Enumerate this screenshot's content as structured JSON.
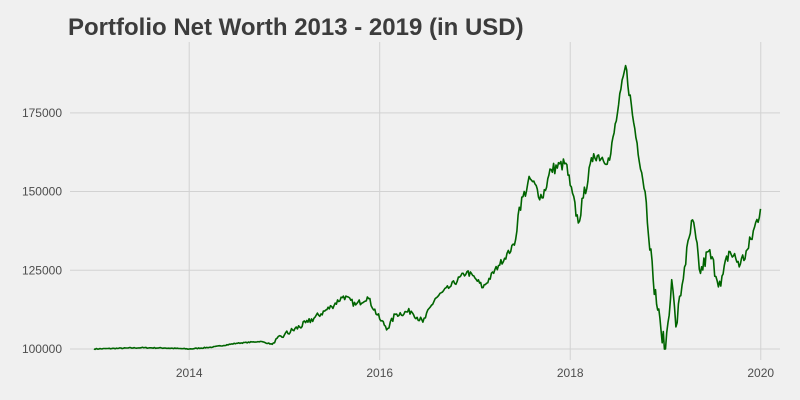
{
  "chart_data": {
    "type": "line",
    "title": "Portfolio Net Worth 2013 - 2019 (in USD)",
    "xlabel": "",
    "ylabel": "",
    "x_axis": {
      "type": "date",
      "ticks": [
        2014,
        2016,
        2018,
        2020
      ],
      "range": [
        "2012-10-01",
        "2020-03-15"
      ]
    },
    "y_axis": {
      "ticks": [
        100000,
        125000,
        150000,
        175000
      ],
      "range": [
        96500,
        197500
      ]
    },
    "grid": true,
    "line_color": "#006400",
    "series": [
      {
        "points": [
          [
            "2013-01-01",
            100000
          ],
          [
            "2013-04-01",
            100200
          ],
          [
            "2013-07-01",
            100400
          ],
          [
            "2013-10-01",
            100300
          ],
          [
            "2014-01-01",
            100000
          ],
          [
            "2014-04-01",
            100600
          ],
          [
            "2014-07-01",
            101800
          ],
          [
            "2014-10-01",
            102400
          ],
          [
            "2014-11-15",
            101500
          ],
          [
            "2015-01-01",
            104500
          ],
          [
            "2015-04-01",
            108500
          ],
          [
            "2015-07-01",
            113500
          ],
          [
            "2015-08-15",
            116800
          ],
          [
            "2015-10-01",
            114000
          ],
          [
            "2015-11-15",
            116500
          ],
          [
            "2016-01-01",
            109500
          ],
          [
            "2016-02-01",
            106500
          ],
          [
            "2016-03-01",
            111000
          ],
          [
            "2016-05-01",
            112000
          ],
          [
            "2016-06-15",
            108500
          ],
          [
            "2016-08-01",
            116000
          ],
          [
            "2016-10-01",
            120000
          ],
          [
            "2016-12-01",
            124500
          ],
          [
            "2017-01-01",
            122500
          ],
          [
            "2017-02-01",
            119500
          ],
          [
            "2017-04-01",
            126500
          ],
          [
            "2017-06-01",
            133000
          ],
          [
            "2017-06-20",
            145000
          ],
          [
            "2017-08-01",
            154000
          ],
          [
            "2017-09-15",
            148000
          ],
          [
            "2017-10-20",
            157000
          ],
          [
            "2017-12-15",
            159000
          ],
          [
            "2018-01-01",
            152000
          ],
          [
            "2018-02-01",
            140000
          ],
          [
            "2018-02-20",
            148000
          ],
          [
            "2018-04-01",
            162000
          ],
          [
            "2018-06-01",
            160000
          ],
          [
            "2018-07-01",
            175000
          ],
          [
            "2018-08-01",
            190000
          ],
          [
            "2018-09-01",
            172000
          ],
          [
            "2018-10-15",
            150000
          ],
          [
            "2018-11-15",
            122000
          ],
          [
            "2018-12-15",
            106000
          ],
          [
            "2019-01-01",
            100000
          ],
          [
            "2019-01-25",
            122000
          ],
          [
            "2019-02-10",
            107000
          ],
          [
            "2019-03-15",
            126000
          ],
          [
            "2019-04-15",
            141000
          ],
          [
            "2019-05-15",
            124000
          ],
          [
            "2019-06-15",
            131000
          ],
          [
            "2019-08-01",
            120000
          ],
          [
            "2019-09-01",
            131000
          ],
          [
            "2019-10-15",
            127000
          ],
          [
            "2019-11-15",
            132000
          ],
          [
            "2019-12-31",
            144500
          ]
        ]
      }
    ]
  }
}
